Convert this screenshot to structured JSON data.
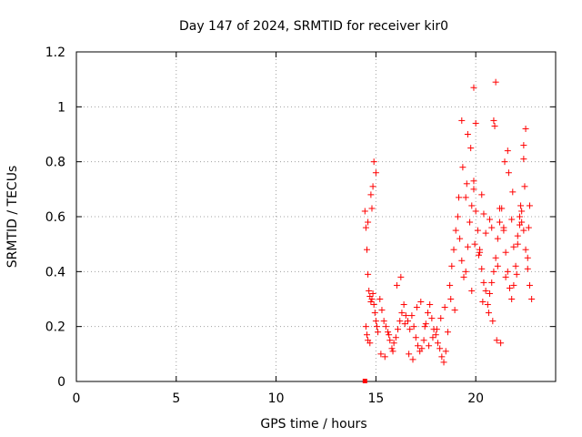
{
  "chart_data": {
    "type": "scatter",
    "title": "Day 147 of 2024, SRMTID for receiver kir0",
    "xlabel": "GPS time / hours",
    "ylabel": "SRMTID / TECUs",
    "xlim": [
      0,
      24
    ],
    "ylim": [
      0,
      1.2
    ],
    "xticks": [
      0,
      5,
      10,
      15,
      20
    ],
    "yticks": [
      0,
      0.2,
      0.4,
      0.6,
      0.8,
      1,
      1.2
    ],
    "xtick_labels": [
      "0",
      "5",
      "10",
      "15",
      "20"
    ],
    "ytick_labels": [
      "0",
      "0.2",
      "0.4",
      "0.6",
      "0.8",
      "1",
      "1.2"
    ],
    "grid": true,
    "marker": "+",
    "color": "#ff0000",
    "series": [
      {
        "name": "kir0",
        "x": [
          14.45,
          14.5,
          14.55,
          14.6,
          14.65,
          14.7,
          14.75,
          14.8,
          14.85,
          14.9,
          14.95,
          15.0,
          15.05,
          15.1,
          14.5,
          14.55,
          14.6,
          14.7,
          14.8,
          14.9,
          15.0,
          14.6,
          14.75,
          14.85,
          15.2,
          15.3,
          15.4,
          15.5,
          15.6,
          15.7,
          15.8,
          15.9,
          16.0,
          16.1,
          16.2,
          16.3,
          16.4,
          16.5,
          15.25,
          15.45,
          15.65,
          15.85,
          16.05,
          16.25,
          16.45,
          16.6,
          16.7,
          16.8,
          16.9,
          17.0,
          17.1,
          17.2,
          17.3,
          17.4,
          17.5,
          17.6,
          17.7,
          17.8,
          17.9,
          18.0,
          18.1,
          18.2,
          18.3,
          18.4,
          18.5,
          18.6,
          16.65,
          16.85,
          17.05,
          17.25,
          17.45,
          17.65,
          17.85,
          18.05,
          18.25,
          18.45,
          18.7,
          18.8,
          18.9,
          19.0,
          19.1,
          19.2,
          19.3,
          19.4,
          19.5,
          19.6,
          19.7,
          19.8,
          19.9,
          20.0,
          20.1,
          20.2,
          20.3,
          20.4,
          20.5,
          18.75,
          18.95,
          19.15,
          19.35,
          19.55,
          19.75,
          19.95,
          20.15,
          20.35,
          20.6,
          20.7,
          20.8,
          20.9,
          21.0,
          21.1,
          21.2,
          21.3,
          21.4,
          21.5,
          21.6,
          21.7,
          21.8,
          21.9,
          22.0,
          22.1,
          22.2,
          22.3,
          22.4,
          22.5,
          22.6,
          22.7,
          22.8,
          20.65,
          20.85,
          21.05,
          21.25,
          21.45,
          21.65,
          21.85,
          22.05,
          22.25,
          22.45,
          22.65,
          19.3,
          19.6,
          19.9,
          20.0,
          20.4,
          20.9,
          20.95,
          21.0,
          21.6,
          22.5,
          22.4,
          19.8,
          20.2,
          20.5,
          20.8,
          21.2,
          21.5,
          21.9,
          22.2,
          22.6,
          22.3,
          19.5,
          19.9,
          20.3,
          20.7,
          21.1,
          21.4,
          21.8,
          22.1,
          22.4,
          22.7,
          14.45
        ],
        "y": [
          0.62,
          0.56,
          0.48,
          0.39,
          0.33,
          0.31,
          0.29,
          0.3,
          0.32,
          0.28,
          0.25,
          0.22,
          0.2,
          0.18,
          0.2,
          0.17,
          0.15,
          0.14,
          0.63,
          0.8,
          0.76,
          0.58,
          0.68,
          0.71,
          0.3,
          0.26,
          0.22,
          0.2,
          0.18,
          0.15,
          0.12,
          0.14,
          0.16,
          0.19,
          0.22,
          0.25,
          0.28,
          0.24,
          0.1,
          0.09,
          0.17,
          0.11,
          0.35,
          0.38,
          0.21,
          0.22,
          0.19,
          0.24,
          0.2,
          0.16,
          0.13,
          0.11,
          0.12,
          0.15,
          0.21,
          0.25,
          0.28,
          0.23,
          0.19,
          0.17,
          0.14,
          0.12,
          0.09,
          0.07,
          0.11,
          0.18,
          0.1,
          0.08,
          0.27,
          0.29,
          0.2,
          0.13,
          0.16,
          0.19,
          0.23,
          0.27,
          0.35,
          0.42,
          0.48,
          0.55,
          0.6,
          0.52,
          0.44,
          0.38,
          0.4,
          0.49,
          0.58,
          0.64,
          0.7,
          0.62,
          0.55,
          0.48,
          0.41,
          0.36,
          0.33,
          0.3,
          0.26,
          0.67,
          0.78,
          0.72,
          0.85,
          0.5,
          0.46,
          0.29,
          0.28,
          0.32,
          0.36,
          0.4,
          0.45,
          0.52,
          0.58,
          0.63,
          0.55,
          0.47,
          0.4,
          0.34,
          0.3,
          0.35,
          0.42,
          0.5,
          0.57,
          0.62,
          0.55,
          0.48,
          0.41,
          0.35,
          0.3,
          0.25,
          0.22,
          0.15,
          0.14,
          0.8,
          0.76,
          0.69,
          0.39,
          0.64,
          0.71,
          0.56,
          0.95,
          0.9,
          1.07,
          0.94,
          0.61,
          0.95,
          0.93,
          1.09,
          0.84,
          0.92,
          0.81,
          0.33,
          0.47,
          0.54,
          0.56,
          0.63,
          0.38,
          0.49,
          0.6,
          0.45,
          0.58,
          0.67,
          0.73,
          0.68,
          0.59,
          0.42,
          0.56,
          0.59,
          0.53,
          0.86,
          0.64,
          0.0
        ]
      }
    ]
  }
}
